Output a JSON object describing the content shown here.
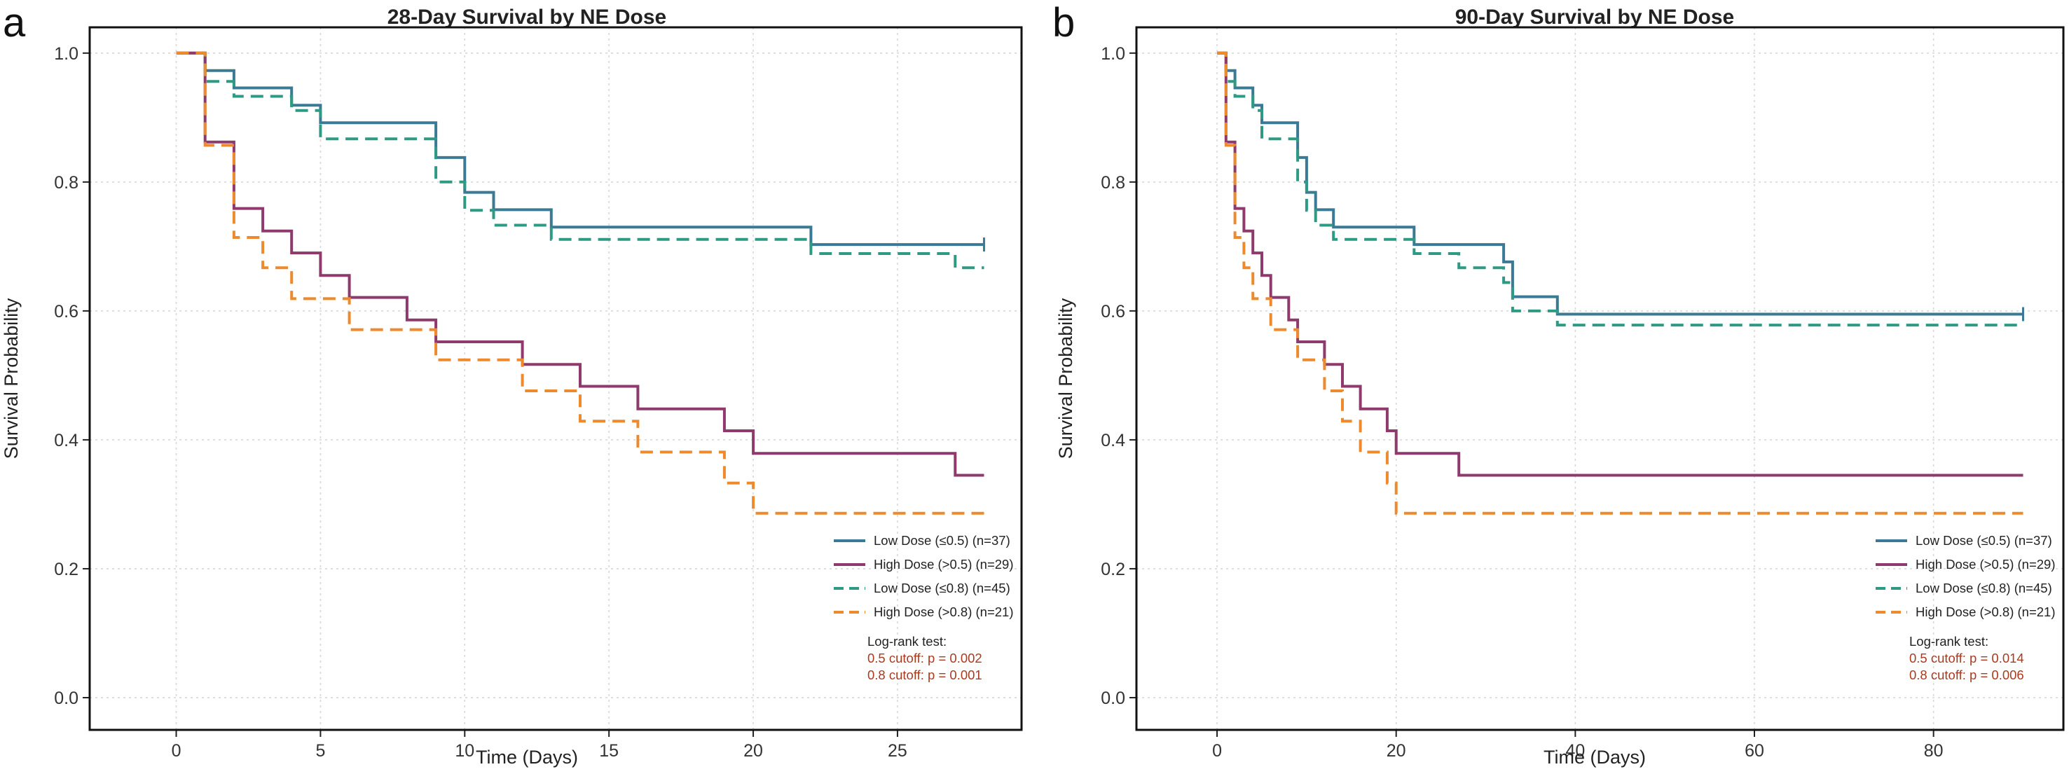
{
  "panel_labels": [
    "a",
    "b"
  ],
  "chart_data": [
    {
      "type": "line",
      "subtype": "kaplan-meier step",
      "title": "28-Day Survival by NE Dose",
      "xlabel": "Time (Days)",
      "ylabel": "Survival Probability",
      "xlim": [
        -3,
        29.3
      ],
      "ylim": [
        -0.05,
        1.04
      ],
      "xticks": [
        0,
        5,
        10,
        15,
        20,
        25
      ],
      "yticks": [
        0.0,
        0.2,
        0.4,
        0.6,
        0.8,
        1.0
      ],
      "ytick_labels": [
        "0.0",
        "0.2",
        "0.4",
        "0.6",
        "0.8",
        "1.0"
      ],
      "grid": true,
      "legend_position": "bottom-right",
      "series": [
        {
          "name": "Low Dose (≤0.5) (n=37)",
          "color": "#3a7a94",
          "dash": "solid",
          "x": [
            0,
            1,
            2,
            4,
            5,
            9,
            10,
            11,
            13,
            22,
            28
          ],
          "y": [
            1.0,
            0.973,
            0.946,
            0.919,
            0.892,
            0.838,
            0.784,
            0.757,
            0.73,
            0.703,
            0.703
          ],
          "censor": [
            {
              "x": 28,
              "y": 0.703
            }
          ]
        },
        {
          "name": "High Dose (>0.5) (n=29)",
          "color": "#8e3a6c",
          "dash": "solid",
          "x": [
            0,
            1,
            2,
            3,
            4,
            5,
            6,
            8,
            9,
            12,
            14,
            16,
            19,
            20,
            27,
            28
          ],
          "y": [
            1.0,
            0.862,
            0.759,
            0.724,
            0.69,
            0.655,
            0.621,
            0.586,
            0.552,
            0.517,
            0.483,
            0.448,
            0.414,
            0.379,
            0.345,
            0.345
          ],
          "censor": []
        },
        {
          "name": "Low Dose (≤0.8) (n=45)",
          "color": "#2e9a84",
          "dash": "dashed",
          "x": [
            0,
            1,
            2,
            4,
            5,
            9,
            10,
            11,
            13,
            22,
            27,
            28
          ],
          "y": [
            1.0,
            0.956,
            0.933,
            0.911,
            0.867,
            0.8,
            0.756,
            0.733,
            0.711,
            0.689,
            0.667,
            0.667
          ],
          "censor": []
        },
        {
          "name": "High Dose (>0.8) (n=21)",
          "color": "#ee8a2e",
          "dash": "dashed",
          "x": [
            0,
            1,
            2,
            3,
            4,
            6,
            9,
            12,
            14,
            16,
            19,
            20,
            28
          ],
          "y": [
            1.0,
            0.857,
            0.714,
            0.667,
            0.619,
            0.571,
            0.524,
            0.476,
            0.429,
            0.381,
            0.333,
            0.286,
            0.286
          ],
          "censor": []
        }
      ],
      "annotation": {
        "title": "Log-rank test:",
        "lines": [
          "0.5 cutoff: p = 0.002",
          "0.8 cutoff: p = 0.001"
        ]
      }
    },
    {
      "type": "line",
      "subtype": "kaplan-meier step",
      "title": "90-Day Survival by NE Dose",
      "xlabel": "Time (Days)",
      "ylabel": "Survival Probability",
      "xlim": [
        -9,
        94.5
      ],
      "ylim": [
        -0.05,
        1.04
      ],
      "xticks": [
        0,
        20,
        40,
        60,
        80
      ],
      "yticks": [
        0.0,
        0.2,
        0.4,
        0.6,
        0.8,
        1.0
      ],
      "ytick_labels": [
        "0.0",
        "0.2",
        "0.4",
        "0.6",
        "0.8",
        "1.0"
      ],
      "grid": true,
      "legend_position": "bottom-right",
      "series": [
        {
          "name": "Low Dose (≤0.5) (n=37)",
          "color": "#3a7a94",
          "dash": "solid",
          "x": [
            0,
            1,
            2,
            4,
            5,
            9,
            10,
            11,
            13,
            22,
            32,
            33,
            38,
            90
          ],
          "y": [
            1.0,
            0.973,
            0.946,
            0.919,
            0.892,
            0.838,
            0.784,
            0.757,
            0.73,
            0.703,
            0.676,
            0.622,
            0.595,
            0.595
          ],
          "censor": [
            {
              "x": 90,
              "y": 0.595
            }
          ]
        },
        {
          "name": "High Dose (>0.5) (n=29)",
          "color": "#8e3a6c",
          "dash": "solid",
          "x": [
            0,
            1,
            2,
            3,
            4,
            5,
            6,
            8,
            9,
            12,
            14,
            16,
            19,
            20,
            27,
            90
          ],
          "y": [
            1.0,
            0.862,
            0.759,
            0.724,
            0.69,
            0.655,
            0.621,
            0.586,
            0.552,
            0.517,
            0.483,
            0.448,
            0.414,
            0.379,
            0.345,
            0.345
          ],
          "censor": []
        },
        {
          "name": "Low Dose (≤0.8) (n=45)",
          "color": "#2e9a84",
          "dash": "dashed",
          "x": [
            0,
            1,
            2,
            4,
            5,
            9,
            10,
            11,
            13,
            22,
            27,
            32,
            33,
            38,
            90
          ],
          "y": [
            1.0,
            0.956,
            0.933,
            0.911,
            0.867,
            0.8,
            0.756,
            0.733,
            0.711,
            0.689,
            0.667,
            0.644,
            0.6,
            0.578,
            0.578
          ],
          "censor": []
        },
        {
          "name": "High Dose (>0.8) (n=21)",
          "color": "#ee8a2e",
          "dash": "dashed",
          "x": [
            0,
            1,
            2,
            3,
            4,
            6,
            9,
            12,
            14,
            16,
            19,
            20,
            90
          ],
          "y": [
            1.0,
            0.857,
            0.714,
            0.667,
            0.619,
            0.571,
            0.524,
            0.476,
            0.429,
            0.381,
            0.333,
            0.286,
            0.286
          ],
          "censor": []
        }
      ],
      "annotation": {
        "title": "Log-rank test:",
        "lines": [
          "0.5 cutoff: p = 0.014",
          "0.8 cutoff: p = 0.006"
        ]
      }
    }
  ]
}
